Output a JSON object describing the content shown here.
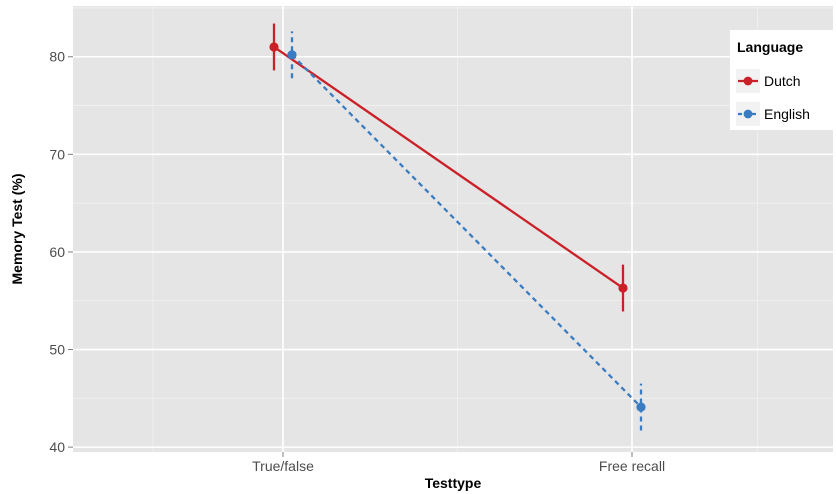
{
  "chart_data": {
    "type": "line",
    "title": "",
    "xlabel": "Testtype",
    "ylabel": "Memory Test (%)",
    "categories": [
      "True/false",
      "Free recall"
    ],
    "y_ticks": [
      40,
      50,
      60,
      70,
      80
    ],
    "ylim": [
      39.5,
      85.2
    ],
    "grid": true,
    "legend": {
      "title": "Language",
      "position": "top-right"
    },
    "series": [
      {
        "name": "Dutch",
        "color": "#cb2027",
        "line_style": "solid",
        "values": [
          81.0,
          56.3
        ],
        "error_low": [
          78.6,
          53.9
        ],
        "error_high": [
          83.4,
          58.7
        ]
      },
      {
        "name": "English",
        "color": "#3a7cc1",
        "line_style": "dashed",
        "values": [
          80.2,
          44.1
        ],
        "error_low": [
          77.8,
          41.7
        ],
        "error_high": [
          82.6,
          46.5
        ]
      }
    ]
  }
}
